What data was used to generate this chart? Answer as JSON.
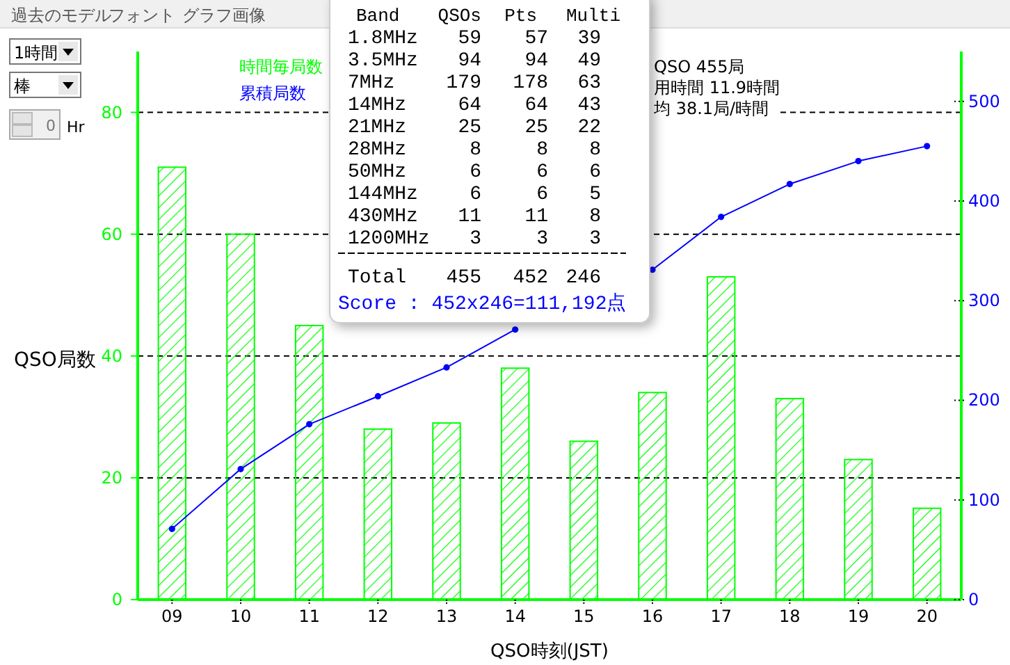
{
  "chart_data": {
    "type": "bar",
    "xlabel": "QSO時刻(JST)",
    "ylabel": "QSO局数",
    "categories": [
      "09",
      "10",
      "11",
      "12",
      "13",
      "14",
      "15",
      "16",
      "17",
      "18",
      "19",
      "20"
    ],
    "series": [
      {
        "name": "時間毎局数",
        "color": "#00ff00",
        "values": [
          71,
          60,
          45,
          28,
          29,
          38,
          26,
          34,
          53,
          33,
          23,
          15
        ]
      },
      {
        "name": "累積局数",
        "type": "line",
        "axis": "y2",
        "color": "#0000ff",
        "values": [
          71,
          131,
          176,
          204,
          233,
          271,
          null,
          331,
          384,
          417,
          440,
          455
        ]
      }
    ],
    "ylim": [
      0,
      90
    ],
    "yticks": [
      0,
      20,
      40,
      60,
      80
    ],
    "y2lim": [
      0,
      550
    ],
    "y2ticks": [
      0,
      100,
      200,
      300,
      400,
      500
    ],
    "grid": "y",
    "legend": "top left",
    "marker": "circle",
    "line_style": "solid",
    "annotations": [
      "過去のモデル",
      "フォント",
      "グラフ画像",
      "1時間",
      "棒",
      "0",
      "Hr",
      "Band QSOs Pts Multi",
      "1.8MHz 59 57 39",
      "3.5MHz 94 94 49",
      "7MHz 179 178 63",
      "14MHz 64 64 43",
      "21MHz 25 25 22",
      "28MHz 8 8 8",
      "50MHz 6 6 6",
      "144MHz 6 6 5",
      "430MHz 11 11 8",
      "1200MHz 3 3 3",
      "Total 455 452 246",
      "Score : 452x246=111,192点",
      "QSO 455局",
      "用時間 11.9時間",
      "均 38.1局/時間"
    ]
  }
}
